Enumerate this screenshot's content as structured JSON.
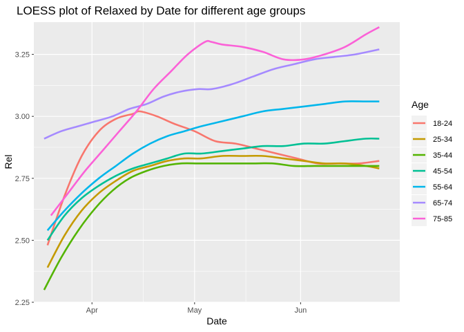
{
  "chart_data": {
    "type": "line",
    "title": "LOESS plot of Relaxed by Date for different age groups",
    "xlabel": "Date",
    "ylabel": "Rel",
    "x_ticks": [
      {
        "label": "Apr",
        "date": "2020-04-01"
      },
      {
        "label": "May",
        "date": "2020-05-01"
      },
      {
        "label": "Jun",
        "date": "2020-06-01"
      }
    ],
    "y_ticks": [
      "2.25",
      "2.50",
      "2.75",
      "3.00",
      "3.25"
    ],
    "xlim": [
      "2020-03-15",
      "2020-06-30"
    ],
    "ylim": [
      2.25,
      3.38
    ],
    "grid": true,
    "legend": {
      "title": "Age",
      "position": "right"
    },
    "series": [
      {
        "name": "18-24",
        "color": "#F8766D",
        "x": [
          "2020-03-19",
          "2020-03-24",
          "2020-03-29",
          "2020-04-03",
          "2020-04-08",
          "2020-04-13",
          "2020-04-15",
          "2020-04-20",
          "2020-04-25",
          "2020-05-01",
          "2020-05-07",
          "2020-05-13",
          "2020-05-19",
          "2020-05-25",
          "2020-05-31",
          "2020-06-06",
          "2020-06-12",
          "2020-06-18",
          "2020-06-24"
        ],
        "y": [
          2.48,
          2.68,
          2.84,
          2.94,
          2.99,
          3.01,
          3.02,
          3.0,
          2.97,
          2.94,
          2.9,
          2.89,
          2.87,
          2.85,
          2.83,
          2.81,
          2.81,
          2.81,
          2.82
        ]
      },
      {
        "name": "25-34",
        "color": "#C49A00",
        "x": [
          "2020-03-19",
          "2020-03-24",
          "2020-03-29",
          "2020-04-03",
          "2020-04-08",
          "2020-04-13",
          "2020-04-18",
          "2020-04-23",
          "2020-04-28",
          "2020-05-03",
          "2020-05-09",
          "2020-05-15",
          "2020-05-21",
          "2020-05-27",
          "2020-06-02",
          "2020-06-08",
          "2020-06-14",
          "2020-06-20",
          "2020-06-24"
        ],
        "y": [
          2.39,
          2.52,
          2.62,
          2.69,
          2.74,
          2.78,
          2.8,
          2.82,
          2.83,
          2.83,
          2.84,
          2.84,
          2.84,
          2.83,
          2.82,
          2.81,
          2.81,
          2.8,
          2.79
        ]
      },
      {
        "name": "35-44",
        "color": "#53B400",
        "x": [
          "2020-03-18",
          "2020-03-23",
          "2020-03-28",
          "2020-04-02",
          "2020-04-07",
          "2020-04-12",
          "2020-04-17",
          "2020-04-22",
          "2020-04-27",
          "2020-05-02",
          "2020-05-06",
          "2020-05-12",
          "2020-05-18",
          "2020-05-24",
          "2020-05-30",
          "2020-06-05",
          "2020-06-11",
          "2020-06-17",
          "2020-06-24"
        ],
        "y": [
          2.3,
          2.43,
          2.54,
          2.63,
          2.7,
          2.75,
          2.78,
          2.8,
          2.81,
          2.81,
          2.81,
          2.81,
          2.81,
          2.81,
          2.8,
          2.8,
          2.8,
          2.8,
          2.8
        ]
      },
      {
        "name": "45-54",
        "color": "#00C094",
        "x": [
          "2020-03-19",
          "2020-03-24",
          "2020-03-29",
          "2020-04-03",
          "2020-04-08",
          "2020-04-13",
          "2020-04-18",
          "2020-04-23",
          "2020-04-28",
          "2020-05-03",
          "2020-05-09",
          "2020-05-15",
          "2020-05-21",
          "2020-05-27",
          "2020-06-02",
          "2020-06-08",
          "2020-06-14",
          "2020-06-20",
          "2020-06-24"
        ],
        "y": [
          2.5,
          2.6,
          2.67,
          2.72,
          2.76,
          2.79,
          2.81,
          2.83,
          2.85,
          2.85,
          2.86,
          2.87,
          2.88,
          2.88,
          2.89,
          2.89,
          2.9,
          2.91,
          2.91
        ]
      },
      {
        "name": "55-64",
        "color": "#00B6EB",
        "x": [
          "2020-03-19",
          "2020-03-24",
          "2020-03-29",
          "2020-04-03",
          "2020-04-08",
          "2020-04-13",
          "2020-04-18",
          "2020-04-23",
          "2020-04-28",
          "2020-05-03",
          "2020-05-09",
          "2020-05-15",
          "2020-05-21",
          "2020-05-27",
          "2020-06-02",
          "2020-06-08",
          "2020-06-14",
          "2020-06-20",
          "2020-06-24"
        ],
        "y": [
          2.54,
          2.62,
          2.69,
          2.75,
          2.8,
          2.85,
          2.89,
          2.92,
          2.94,
          2.96,
          2.98,
          3.0,
          3.02,
          3.03,
          3.04,
          3.05,
          3.06,
          3.06,
          3.06
        ]
      },
      {
        "name": "65-74",
        "color": "#A58AFF",
        "x": [
          "2020-03-18",
          "2020-03-23",
          "2020-03-28",
          "2020-04-02",
          "2020-04-07",
          "2020-04-12",
          "2020-04-17",
          "2020-04-22",
          "2020-04-27",
          "2020-05-02",
          "2020-05-06",
          "2020-05-12",
          "2020-05-18",
          "2020-05-24",
          "2020-05-30",
          "2020-06-05",
          "2020-06-11",
          "2020-06-17",
          "2020-06-24"
        ],
        "y": [
          2.91,
          2.94,
          2.96,
          2.98,
          3.0,
          3.03,
          3.05,
          3.08,
          3.1,
          3.11,
          3.11,
          3.13,
          3.16,
          3.19,
          3.21,
          3.23,
          3.24,
          3.25,
          3.27
        ]
      },
      {
        "name": "75-85",
        "color": "#FB61D7",
        "x": [
          "2020-03-20",
          "2020-03-25",
          "2020-03-30",
          "2020-04-04",
          "2020-04-09",
          "2020-04-14",
          "2020-04-19",
          "2020-04-24",
          "2020-04-29",
          "2020-05-04",
          "2020-05-06",
          "2020-05-09",
          "2020-05-15",
          "2020-05-21",
          "2020-05-27",
          "2020-06-02",
          "2020-06-08",
          "2020-06-14",
          "2020-06-20",
          "2020-06-24"
        ],
        "y": [
          2.6,
          2.69,
          2.78,
          2.86,
          2.94,
          3.02,
          3.11,
          3.18,
          3.25,
          3.3,
          3.3,
          3.29,
          3.28,
          3.26,
          3.23,
          3.23,
          3.25,
          3.28,
          3.33,
          3.36
        ]
      }
    ]
  }
}
